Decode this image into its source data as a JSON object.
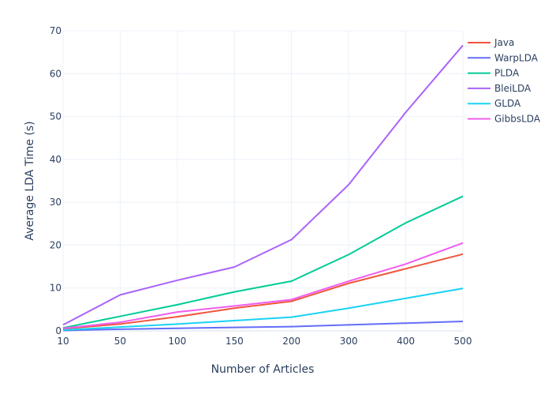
{
  "chart_data": {
    "type": "line",
    "title": "",
    "xlabel": "Number of Articles",
    "ylabel": "Average LDA Time (s)",
    "x": [
      "10",
      "50",
      "100",
      "150",
      "200",
      "300",
      "400",
      "500"
    ],
    "x_axis_type": "category",
    "ylim": [
      0,
      70
    ],
    "yticks": [
      0,
      10,
      20,
      30,
      40,
      50,
      60,
      70
    ],
    "grid": true,
    "legend_position": "top-right",
    "series": [
      {
        "name": "Java",
        "color": "#EF553B",
        "values": [
          0.5,
          1.6,
          3.3,
          5.3,
          6.9,
          11.1,
          14.5,
          17.9
        ]
      },
      {
        "name": "WarpLDA",
        "color": "#636EFA",
        "values": [
          0.1,
          0.4,
          0.6,
          0.8,
          1.0,
          1.4,
          1.8,
          2.2
        ]
      },
      {
        "name": "PLDA",
        "color": "#00CC96",
        "values": [
          0.7,
          3.4,
          6.1,
          9.1,
          11.6,
          17.8,
          25.2,
          31.4
        ]
      },
      {
        "name": "BleiLDA",
        "color": "#AB63FA",
        "values": [
          1.4,
          8.4,
          11.8,
          14.9,
          21.3,
          34.1,
          51.0,
          66.6
        ]
      },
      {
        "name": "GLDA",
        "color": "#19D3F3",
        "values": [
          0.2,
          0.9,
          1.6,
          2.4,
          3.2,
          5.3,
          7.6,
          9.9
        ]
      },
      {
        "name": "GibbsLDA",
        "color": "#FF6692",
        "values": [
          0.6,
          2.0,
          4.4,
          5.8,
          7.3,
          11.6,
          15.6,
          20.5
        ]
      }
    ]
  }
}
